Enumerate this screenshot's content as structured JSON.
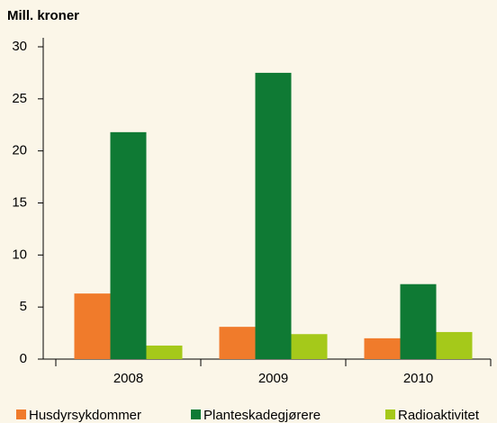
{
  "chart_data": {
    "type": "bar",
    "ylabel": "Mill. kroner",
    "categories": [
      "2008",
      "2009",
      "2010"
    ],
    "series": [
      {
        "name": "Husdyrsykdommer",
        "color": "#f07b2b",
        "values": [
          6.3,
          3.1,
          2.0
        ]
      },
      {
        "name": "Planteskadegjørere",
        "color": "#0f7a34",
        "values": [
          21.8,
          27.5,
          7.2
        ]
      },
      {
        "name": "Radioaktivitet",
        "color": "#a5c91a",
        "values": [
          1.3,
          2.4,
          2.6
        ]
      }
    ],
    "ylim": [
      0,
      30
    ],
    "yticks": [
      0,
      5,
      10,
      15,
      20,
      25,
      30
    ],
    "legend": "bottom"
  }
}
